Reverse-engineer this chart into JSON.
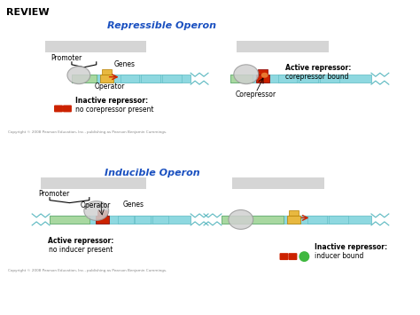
{
  "title_review": "REVIEW",
  "title_repressible": "Repressible Operon",
  "title_inducible": "Inducible Operon",
  "bg_color": "#ffffff",
  "dna_color": "#8ed8e0",
  "promoter_color": "#a8d8a0",
  "operator_color": "#e8b840",
  "operator_blocked_color": "#cc2200",
  "repressor_color": "#cc2200",
  "corepressor_color": "#e87830",
  "inducer_color": "#40b840",
  "arrow_color": "#cc2200",
  "title_color": "#1a50c0",
  "gray_blur": "#c8c8c8",
  "dna_edge": "#5ab8c0",
  "copyright": "Copyright © 2008 Pearson Education, Inc., publishing as Pearson Benjamin Cummings."
}
